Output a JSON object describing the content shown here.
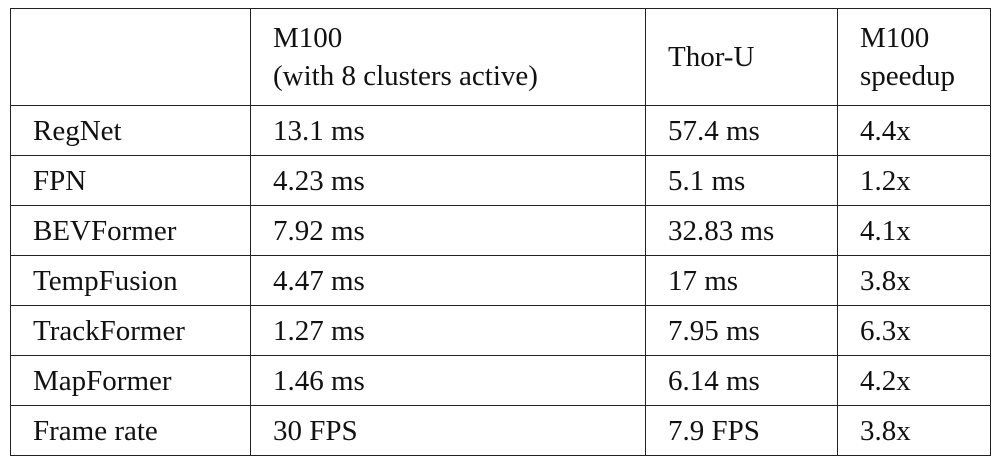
{
  "table": {
    "header": [
      [
        "M100",
        "(with 8 clusters active)"
      ],
      [
        "Thor-U"
      ],
      [
        "M100",
        "speedup"
      ]
    ],
    "rows": [
      [
        "RegNet",
        "13.1 ms",
        "57.4 ms",
        "4.4x"
      ],
      [
        "FPN",
        "4.23 ms",
        "5.1 ms",
        "1.2x"
      ],
      [
        "BEVFormer",
        "7.92 ms",
        "32.83 ms",
        "4.1x"
      ],
      [
        "TempFusion",
        "4.47 ms",
        "17 ms",
        "3.8x"
      ],
      [
        "TrackFormer",
        "1.27 ms",
        "7.95 ms",
        "6.3x"
      ],
      [
        "MapFormer",
        "1.46 ms",
        "6.14 ms",
        "4.2x"
      ],
      [
        "Frame rate",
        "30 FPS",
        "7.9 FPS",
        "3.8x"
      ]
    ]
  }
}
